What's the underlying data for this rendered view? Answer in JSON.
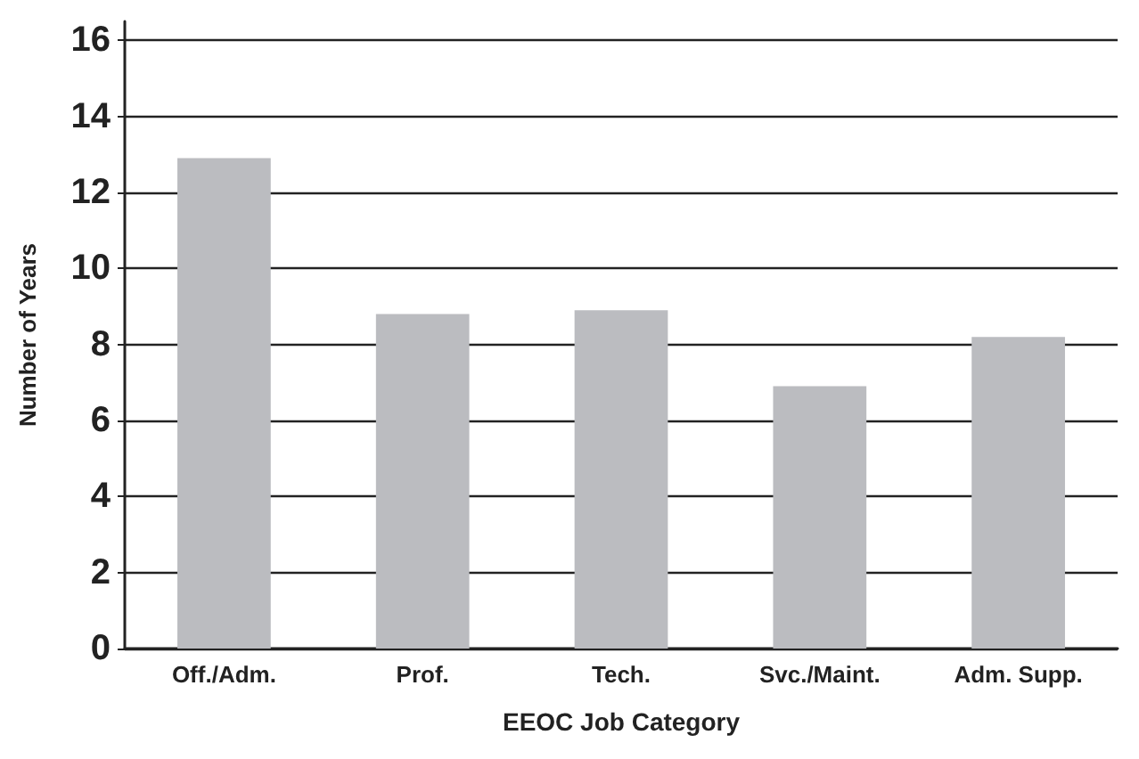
{
  "chart_data": {
    "type": "bar",
    "xlabel": "EEOC Job Category",
    "ylabel": "Number of Years",
    "categories": [
      "Off./Adm.",
      "Prof.",
      "Tech.",
      "Svc./Maint.",
      "Adm. Supp."
    ],
    "values": [
      12.9,
      8.8,
      8.9,
      6.9,
      8.2
    ],
    "color": "#bbbcc0",
    "ylim": [
      0,
      16.5
    ],
    "yticks": [
      0,
      2,
      4,
      6,
      8,
      10,
      12,
      14,
      16
    ],
    "grid": "y"
  }
}
